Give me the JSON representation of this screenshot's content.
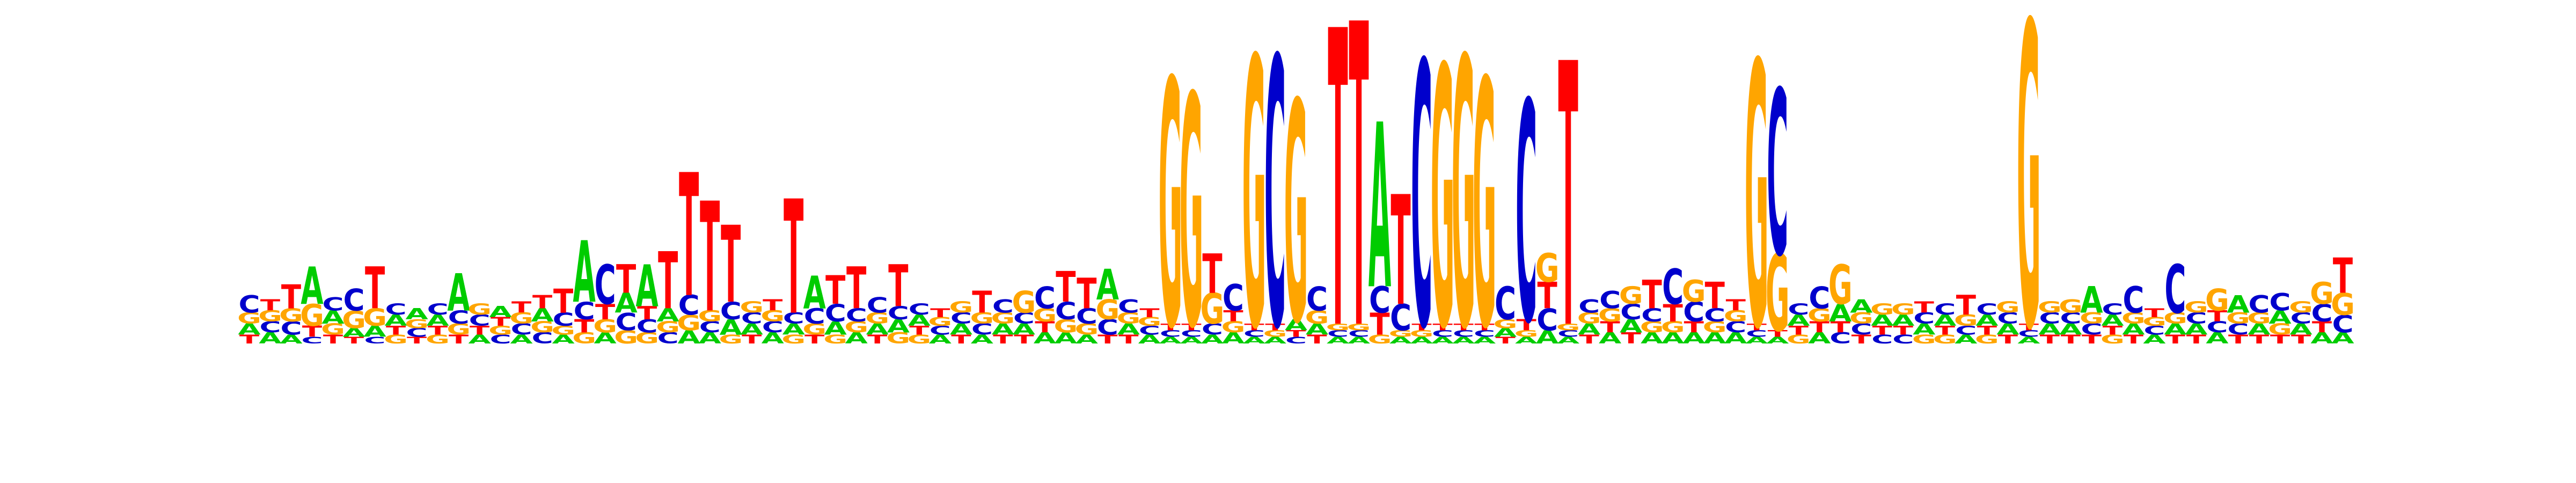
{
  "chart_data": {
    "type": "sequence-logo",
    "alphabet": [
      "A",
      "C",
      "G",
      "T"
    ],
    "colors": {
      "A": "#00cc00",
      "C": "#0000cc",
      "G": "#ffa500",
      "T": "#ff0000"
    },
    "bits_max": 2,
    "positions": [
      {
        "A": 0.05,
        "C": 0.08,
        "G": 0.05,
        "T": 0.04
      },
      {
        "A": 0.05,
        "C": 0.05,
        "G": 0.05,
        "T": 0.05
      },
      {
        "A": 0.04,
        "C": 0.06,
        "G": 0.06,
        "T": 0.11
      },
      {
        "A": 0.17,
        "C": 0.03,
        "G": 0.1,
        "T": 0.05
      },
      {
        "A": 0.06,
        "C": 0.06,
        "G": 0.05,
        "T": 0.04
      },
      {
        "A": 0.04,
        "C": 0.1,
        "G": 0.08,
        "T": 0.03
      },
      {
        "A": 0.05,
        "C": 0.03,
        "G": 0.08,
        "T": 0.19
      },
      {
        "A": 0.05,
        "C": 0.05,
        "G": 0.04,
        "T": 0.04
      },
      {
        "A": 0.05,
        "C": 0.04,
        "G": 0.04,
        "T": 0.03
      },
      {
        "A": 0.05,
        "C": 0.05,
        "G": 0.04,
        "T": 0.04
      },
      {
        "A": 0.17,
        "C": 0.06,
        "G": 0.05,
        "T": 0.04
      },
      {
        "A": 0.04,
        "C": 0.05,
        "G": 0.05,
        "T": 0.04
      },
      {
        "A": 0.05,
        "C": 0.04,
        "G": 0.04,
        "T": 0.04
      },
      {
        "A": 0.04,
        "C": 0.05,
        "G": 0.05,
        "T": 0.05
      },
      {
        "A": 0.06,
        "C": 0.05,
        "G": 0.05,
        "T": 0.06
      },
      {
        "A": 0.04,
        "C": 0.06,
        "G": 0.04,
        "T": 0.11
      },
      {
        "A": 0.28,
        "C": 0.08,
        "G": 0.05,
        "T": 0.06
      },
      {
        "A": 0.05,
        "C": 0.18,
        "G": 0.06,
        "T": 0.07
      },
      {
        "A": 0.09,
        "C": 0.08,
        "G": 0.06,
        "T": 0.13
      },
      {
        "A": 0.19,
        "C": 0.06,
        "G": 0.05,
        "T": 0.06
      },
      {
        "A": 0.06,
        "C": 0.05,
        "G": 0.05,
        "T": 0.26
      },
      {
        "A": 0.06,
        "C": 0.09,
        "G": 0.07,
        "T": 0.56
      },
      {
        "A": 0.05,
        "C": 0.05,
        "G": 0.05,
        "T": 0.5
      },
      {
        "A": 0.07,
        "C": 0.08,
        "G": 0.04,
        "T": 0.35
      },
      {
        "A": 0.05,
        "C": 0.05,
        "G": 0.05,
        "T": 0.04
      },
      {
        "A": 0.05,
        "C": 0.05,
        "G": 0.05,
        "T": 0.05
      },
      {
        "A": 0.05,
        "C": 0.05,
        "G": 0.04,
        "T": 0.52
      },
      {
        "A": 0.15,
        "C": 0.07,
        "G": 0.05,
        "T": 0.04
      },
      {
        "A": 0.06,
        "C": 0.08,
        "G": 0.04,
        "T": 0.13
      },
      {
        "A": 0.05,
        "C": 0.06,
        "G": 0.05,
        "T": 0.19
      },
      {
        "A": 0.05,
        "C": 0.07,
        "G": 0.05,
        "T": 0.04
      },
      {
        "A": 0.06,
        "C": 0.06,
        "G": 0.05,
        "T": 0.19
      },
      {
        "A": 0.05,
        "C": 0.05,
        "G": 0.04,
        "T": 0.04
      },
      {
        "A": 0.04,
        "C": 0.04,
        "G": 0.04,
        "T": 0.04
      },
      {
        "A": 0.05,
        "C": 0.05,
        "G": 0.05,
        "T": 0.04
      },
      {
        "A": 0.04,
        "C": 0.05,
        "G": 0.05,
        "T": 0.1
      },
      {
        "A": 0.05,
        "C": 0.06,
        "G": 0.05,
        "T": 0.04
      },
      {
        "A": 0.05,
        "C": 0.05,
        "G": 0.1,
        "T": 0.04
      },
      {
        "A": 0.05,
        "C": 0.1,
        "G": 0.06,
        "T": 0.05
      },
      {
        "A": 0.05,
        "C": 0.08,
        "G": 0.06,
        "T": 0.14
      },
      {
        "A": 0.04,
        "C": 0.07,
        "G": 0.05,
        "T": 0.14
      },
      {
        "A": 0.14,
        "C": 0.07,
        "G": 0.09,
        "T": 0.04
      },
      {
        "A": 0.05,
        "C": 0.06,
        "G": 0.05,
        "T": 0.04
      },
      {
        "A": 0.04,
        "C": 0.04,
        "G": 0.04,
        "T": 0.04
      },
      {
        "A": 0.03,
        "C": 0.03,
        "G": 1.12,
        "T": 0.03
      },
      {
        "A": 0.03,
        "C": 0.03,
        "G": 1.05,
        "T": 0.03
      },
      {
        "A": 0.04,
        "C": 0.05,
        "G": 0.14,
        "T": 0.18
      },
      {
        "A": 0.05,
        "C": 0.12,
        "G": 0.05,
        "T": 0.05
      },
      {
        "A": 0.03,
        "C": 0.03,
        "G": 1.22,
        "T": 0.03
      },
      {
        "A": 0.03,
        "C": 1.22,
        "G": 0.03,
        "T": 0.03
      },
      {
        "A": 0.05,
        "C": 0.03,
        "G": 1.0,
        "T": 0.03
      },
      {
        "A": 0.05,
        "C": 0.11,
        "G": 0.06,
        "T": 0.04
      },
      {
        "A": 0.03,
        "C": 0.03,
        "G": 0.03,
        "T": 1.35
      },
      {
        "A": 0.03,
        "C": 0.03,
        "G": 0.03,
        "T": 1.38
      },
      {
        "A": 0.75,
        "C": 0.12,
        "G": 0.04,
        "T": 0.1
      },
      {
        "A": 0.03,
        "C": 0.12,
        "G": 0.03,
        "T": 0.5
      },
      {
        "A": 0.03,
        "C": 1.2,
        "G": 0.03,
        "T": 0.03
      },
      {
        "A": 0.03,
        "C": 0.03,
        "G": 1.18,
        "T": 0.03
      },
      {
        "A": 0.03,
        "C": 0.03,
        "G": 1.22,
        "T": 0.03
      },
      {
        "A": 0.03,
        "C": 0.03,
        "G": 1.12,
        "T": 0.03
      },
      {
        "A": 0.04,
        "C": 0.15,
        "G": 0.04,
        "T": 0.03
      },
      {
        "A": 0.03,
        "C": 1.0,
        "G": 0.03,
        "T": 0.05
      },
      {
        "A": 0.06,
        "C": 0.1,
        "G": 0.13,
        "T": 0.12
      },
      {
        "A": 0.03,
        "C": 0.03,
        "G": 0.03,
        "T": 1.2
      },
      {
        "A": 0.05,
        "C": 0.06,
        "G": 0.05,
        "T": 0.04
      },
      {
        "A": 0.05,
        "C": 0.08,
        "G": 0.06,
        "T": 0.05
      },
      {
        "A": 0.06,
        "C": 0.07,
        "G": 0.08,
        "T": 0.05
      },
      {
        "A": 0.05,
        "C": 0.06,
        "G": 0.05,
        "T": 0.13
      },
      {
        "A": 0.05,
        "C": 0.16,
        "G": 0.05,
        "T": 0.08
      },
      {
        "A": 0.05,
        "C": 0.09,
        "G": 0.1,
        "T": 0.05
      },
      {
        "A": 0.05,
        "C": 0.06,
        "G": 0.05,
        "T": 0.12
      },
      {
        "A": 0.05,
        "C": 0.05,
        "G": 0.05,
        "T": 0.05
      },
      {
        "A": 0.03,
        "C": 0.03,
        "G": 1.2,
        "T": 0.03
      },
      {
        "A": 0.03,
        "C": 0.75,
        "G": 0.35,
        "T": 0.03
      },
      {
        "A": 0.05,
        "C": 0.05,
        "G": 0.04,
        "T": 0.04
      },
      {
        "A": 0.05,
        "C": 0.1,
        "G": 0.06,
        "T": 0.05
      },
      {
        "A": 0.08,
        "C": 0.05,
        "G": 0.18,
        "T": 0.05
      },
      {
        "A": 0.06,
        "C": 0.05,
        "G": 0.05,
        "T": 0.04
      },
      {
        "A": 0.05,
        "C": 0.04,
        "G": 0.05,
        "T": 0.04
      },
      {
        "A": 0.05,
        "C": 0.04,
        "G": 0.05,
        "T": 0.04
      },
      {
        "A": 0.05,
        "C": 0.05,
        "G": 0.04,
        "T": 0.05
      },
      {
        "A": 0.05,
        "C": 0.05,
        "G": 0.04,
        "T": 0.04
      },
      {
        "A": 0.04,
        "C": 0.04,
        "G": 0.05,
        "T": 0.09
      },
      {
        "A": 0.05,
        "C": 0.05,
        "G": 0.04,
        "T": 0.04
      },
      {
        "A": 0.05,
        "C": 0.05,
        "G": 0.05,
        "T": 0.04
      },
      {
        "A": 0.03,
        "C": 0.03,
        "G": 1.38,
        "T": 0.03
      },
      {
        "A": 0.05,
        "C": 0.05,
        "G": 0.05,
        "T": 0.04
      },
      {
        "A": 0.05,
        "C": 0.05,
        "G": 0.06,
        "T": 0.04
      },
      {
        "A": 0.12,
        "C": 0.05,
        "G": 0.05,
        "T": 0.04
      },
      {
        "A": 0.05,
        "C": 0.05,
        "G": 0.04,
        "T": 0.04
      },
      {
        "A": 0.05,
        "C": 0.12,
        "G": 0.05,
        "T": 0.04
      },
      {
        "A": 0.04,
        "C": 0.04,
        "G": 0.04,
        "T": 0.04
      },
      {
        "A": 0.05,
        "C": 0.22,
        "G": 0.05,
        "T": 0.04
      },
      {
        "A": 0.05,
        "C": 0.05,
        "G": 0.05,
        "T": 0.04
      },
      {
        "A": 0.05,
        "C": 0.05,
        "G": 0.1,
        "T": 0.05
      },
      {
        "A": 0.08,
        "C": 0.05,
        "G": 0.05,
        "T": 0.04
      },
      {
        "A": 0.05,
        "C": 0.08,
        "G": 0.05,
        "T": 0.04
      },
      {
        "A": 0.06,
        "C": 0.08,
        "G": 0.05,
        "T": 0.04
      },
      {
        "A": 0.05,
        "C": 0.05,
        "G": 0.05,
        "T": 0.04
      },
      {
        "A": 0.05,
        "C": 0.08,
        "G": 0.1,
        "T": 0.05
      },
      {
        "A": 0.05,
        "C": 0.08,
        "G": 0.1,
        "T": 0.16
      }
    ]
  }
}
